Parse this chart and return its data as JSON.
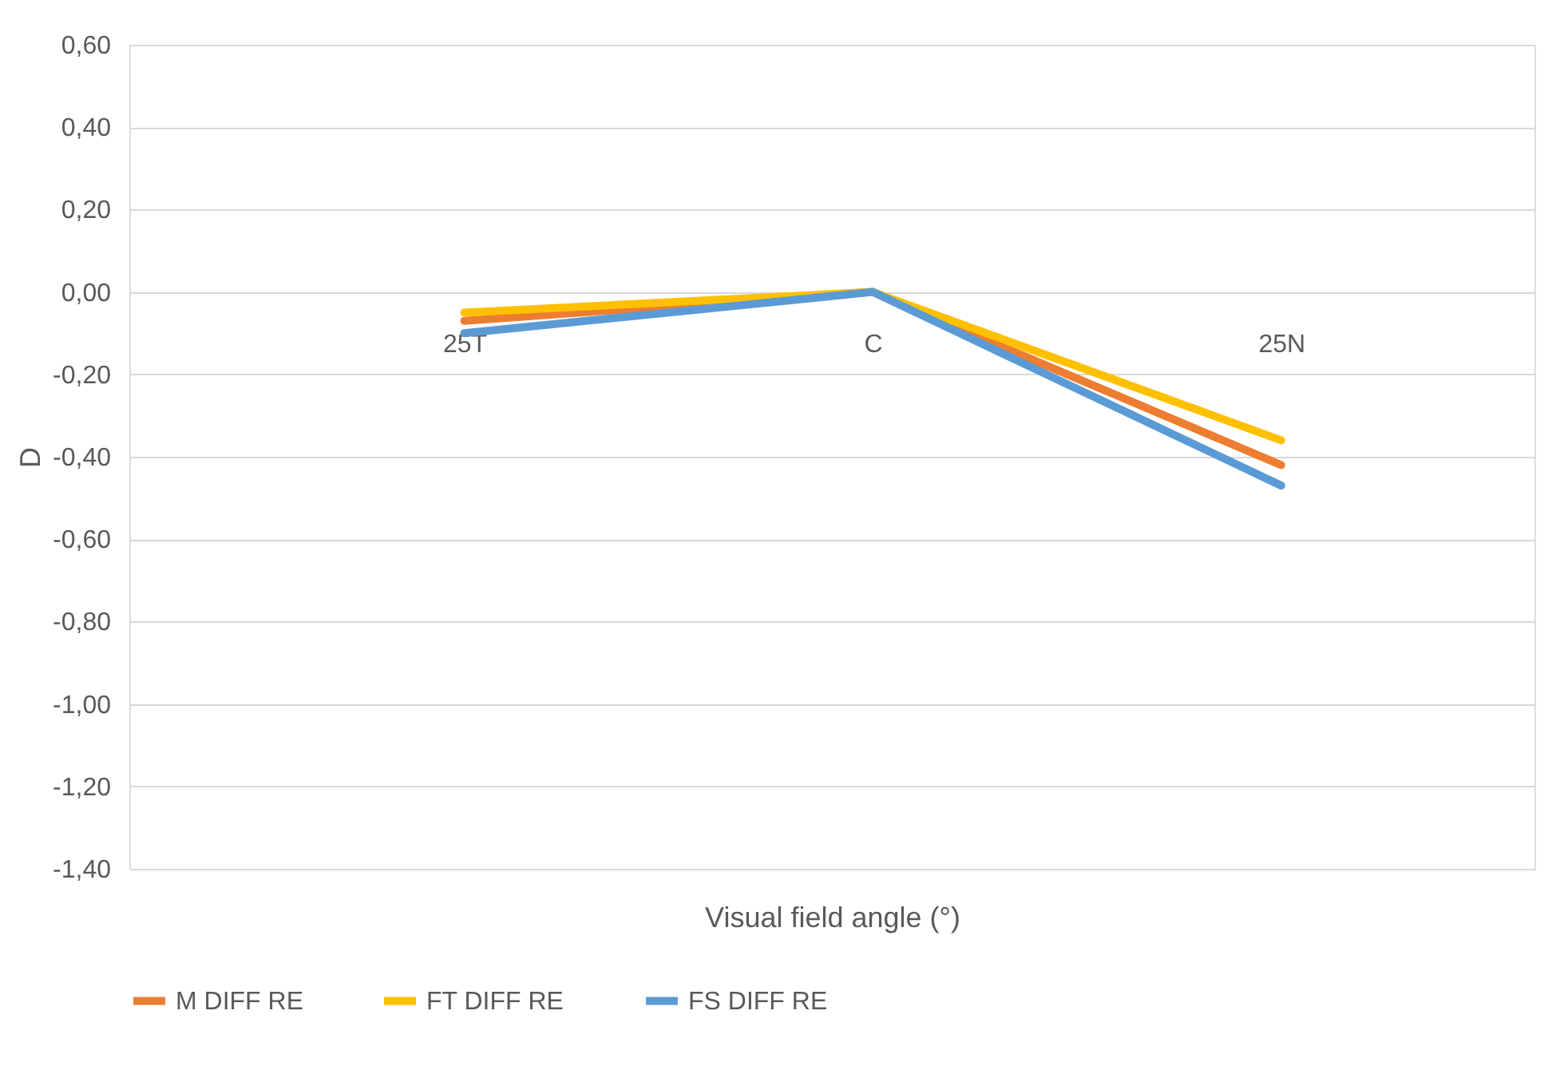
{
  "chart_data": {
    "type": "line",
    "xlabel": "Visual field angle (°)",
    "ylabel": "D",
    "categories": [
      "25T",
      "C",
      "25N"
    ],
    "series": [
      {
        "name": "M DIFF RE",
        "color": "#ed7d31",
        "values": [
          -0.07,
          0.0,
          -0.42
        ]
      },
      {
        "name": "FT DIFF RE",
        "color": "#ffc000",
        "values": [
          -0.05,
          0.0,
          -0.36
        ]
      },
      {
        "name": "FS DIFF RE",
        "color": "#5b9bd5",
        "values": [
          -0.1,
          0.0,
          -0.47
        ]
      }
    ],
    "ylim": [
      -1.4,
      0.6
    ],
    "yticks": [
      {
        "value": -1.4,
        "label": "-1,40"
      },
      {
        "value": -1.2,
        "label": "-1,20"
      },
      {
        "value": -1.0,
        "label": "-1,00"
      },
      {
        "value": -0.8,
        "label": "-0,80"
      },
      {
        "value": -0.6,
        "label": "-0,60"
      },
      {
        "value": -0.4,
        "label": "-0,40"
      },
      {
        "value": -0.2,
        "label": "-0,20"
      },
      {
        "value": 0.0,
        "label": "0,00"
      },
      {
        "value": 0.2,
        "label": "0,20"
      },
      {
        "value": 0.4,
        "label": "0,40"
      },
      {
        "value": 0.6,
        "label": "0,60"
      }
    ],
    "grid": "y",
    "legend": "bottom",
    "marker": "none",
    "line_style": "solid"
  }
}
